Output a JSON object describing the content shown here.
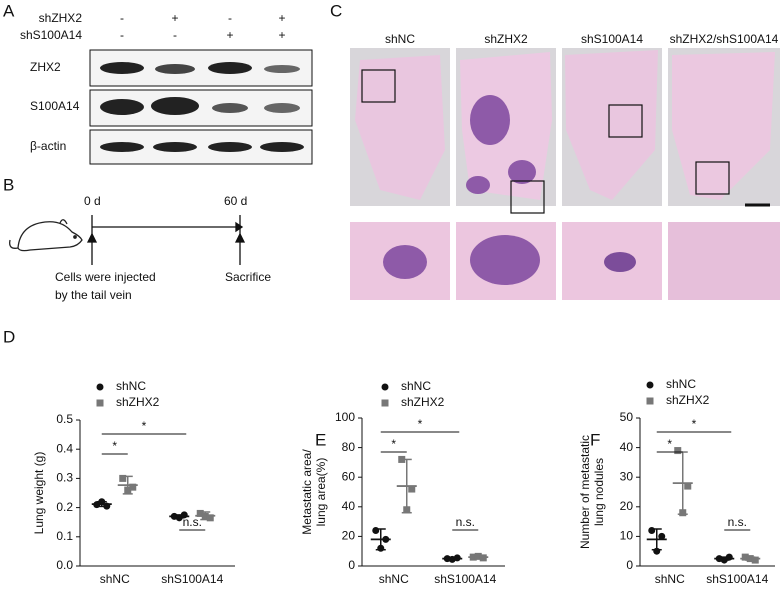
{
  "panel_labels": [
    "A",
    "B",
    "C",
    "D",
    "E",
    "F"
  ],
  "western_blot": {
    "conditions": [
      {
        "label": "shZHX2",
        "marks": [
          "-",
          "+",
          "-",
          "+"
        ]
      },
      {
        "label": "shS100A14",
        "marks": [
          "-",
          "-",
          "+",
          "+"
        ]
      }
    ],
    "bands": [
      "ZHX2",
      "S100A14",
      "β-actin"
    ]
  },
  "schematic": {
    "start": "0 d",
    "end": "60 d",
    "start_note": [
      "Cells were injected",
      "by the tail vein"
    ],
    "end_note": "Sacrifice"
  },
  "histology": {
    "columns": [
      "shNC",
      "shZHX2",
      "shS100A14",
      "shZHX2/shS100A14"
    ]
  },
  "chart_data": [
    {
      "type": "dot",
      "ylabel": [
        "Lung weight (g)"
      ],
      "categories": [
        "shNC",
        "shS100A14"
      ],
      "ylim": [
        0,
        0.5
      ],
      "yticks": [
        {
          "value": 0,
          "label": "0.0"
        },
        0.1,
        0.2,
        0.3,
        0.4,
        0.5
      ],
      "annotations": [
        "*",
        "*",
        "n.s."
      ],
      "series": [
        {
          "name": "shNC",
          "color": "#111111",
          "marker": "circle",
          "values": [
            [
              0.21,
              0.22,
              0.205
            ],
            [
              0.17,
              0.165,
              0.175
            ]
          ],
          "mean": [
            0.212,
            0.17
          ],
          "sd": [
            0.008,
            0.005
          ]
        },
        {
          "name": "shZHX2",
          "color": "#777777",
          "marker": "square",
          "values": [
            [
              0.3,
              0.26,
              0.27
            ],
            [
              0.18,
              0.17,
              0.165
            ]
          ],
          "mean": [
            0.277,
            0.172
          ],
          "sd": [
            0.03,
            0.013
          ]
        }
      ]
    },
    {
      "type": "dot",
      "ylabel": [
        "Metastatic area/",
        "lung area(%)"
      ],
      "categories": [
        "shNC",
        "shS100A14"
      ],
      "ylim": [
        0,
        100
      ],
      "yticks": [
        0,
        20,
        40,
        60,
        80,
        100
      ],
      "annotations": [
        "*",
        "*",
        "n.s."
      ],
      "series": [
        {
          "name": "shNC",
          "color": "#111111",
          "marker": "circle",
          "values": [
            [
              24,
              12,
              18
            ],
            [
              5,
              4.5,
              5.5
            ]
          ],
          "mean": [
            18,
            5
          ],
          "sd": [
            7,
            0.5
          ]
        },
        {
          "name": "shZHX2",
          "color": "#777777",
          "marker": "square",
          "values": [
            [
              72,
              38,
              52
            ],
            [
              6,
              6.5,
              5.5
            ]
          ],
          "mean": [
            54,
            6
          ],
          "sd": [
            18,
            0.5
          ]
        }
      ]
    },
    {
      "type": "dot",
      "ylabel": [
        "Number of metastatic",
        "lung nodules"
      ],
      "categories": [
        "shNC",
        "shS100A14"
      ],
      "ylim": [
        0,
        50
      ],
      "yticks": [
        0,
        10,
        20,
        30,
        40,
        50
      ],
      "annotations": [
        "*",
        "*",
        "n.s."
      ],
      "series": [
        {
          "name": "shNC",
          "color": "#111111",
          "marker": "circle",
          "values": [
            [
              12,
              5,
              10
            ],
            [
              2.5,
              2,
              3
            ]
          ],
          "mean": [
            9,
            2.5
          ],
          "sd": [
            3.5,
            0.5
          ]
        },
        {
          "name": "shZHX2",
          "color": "#777777",
          "marker": "square",
          "values": [
            [
              39,
              18,
              27
            ],
            [
              3,
              2.5,
              2
            ]
          ],
          "mean": [
            28,
            2.5
          ],
          "sd": [
            10.5,
            0.5
          ]
        }
      ]
    }
  ]
}
